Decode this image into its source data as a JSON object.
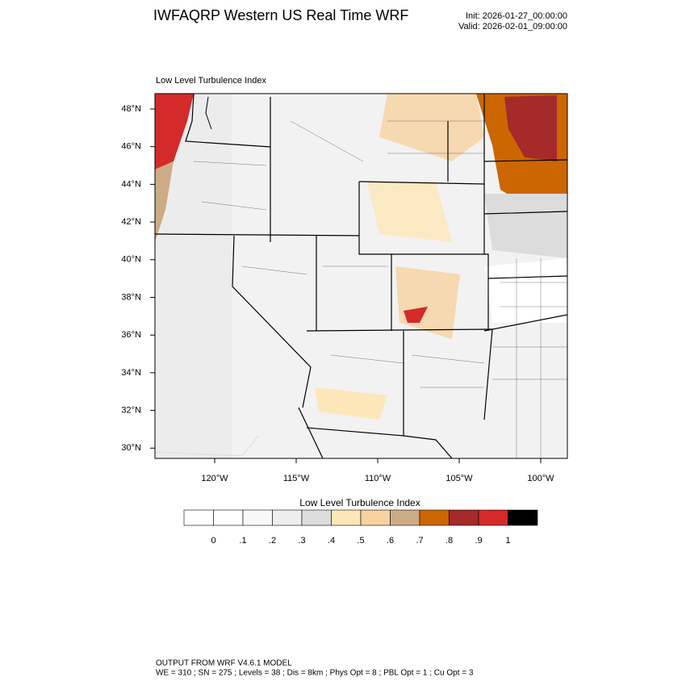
{
  "header": {
    "title": "IWFAQRP Western US Real Time WRF",
    "init": "Init: 2026-01-27_00:00:00",
    "valid": "Valid: 2026-02-01_09:00:00"
  },
  "map": {
    "subtitle": "Low Level Turbulence Index",
    "lat_labels": [
      "48°N",
      "46°N",
      "44°N",
      "42°N",
      "40°N",
      "38°N",
      "36°N",
      "34°N",
      "32°N",
      "30°N"
    ],
    "lon_labels": [
      "120°W",
      "115°W",
      "110°W",
      "105°W",
      "100°W"
    ]
  },
  "colorbar": {
    "title": "Low Level Turbulence Index",
    "labels": [
      "0",
      ".1",
      ".2",
      ".3",
      ".4",
      ".5",
      ".6",
      ".7",
      ".8",
      ".9",
      "1"
    ],
    "colors": [
      "#ffffff",
      "#f8f8f8",
      "#eeeeee",
      "#dcdcdc",
      "#fde6b8",
      "#f6d2a0",
      "#cdab86",
      "#cc6600",
      "#a52a2a",
      "#d42a2a",
      "#000000"
    ]
  },
  "footer": {
    "line1": "OUTPUT FROM WRF V4.6.1 MODEL",
    "line2": "WE = 310 ; SN = 275 ; Levels = 38 ; Dis = 8km ; Phys Opt = 8 ; PBL Opt = 1 ; Cu Opt = 3"
  }
}
